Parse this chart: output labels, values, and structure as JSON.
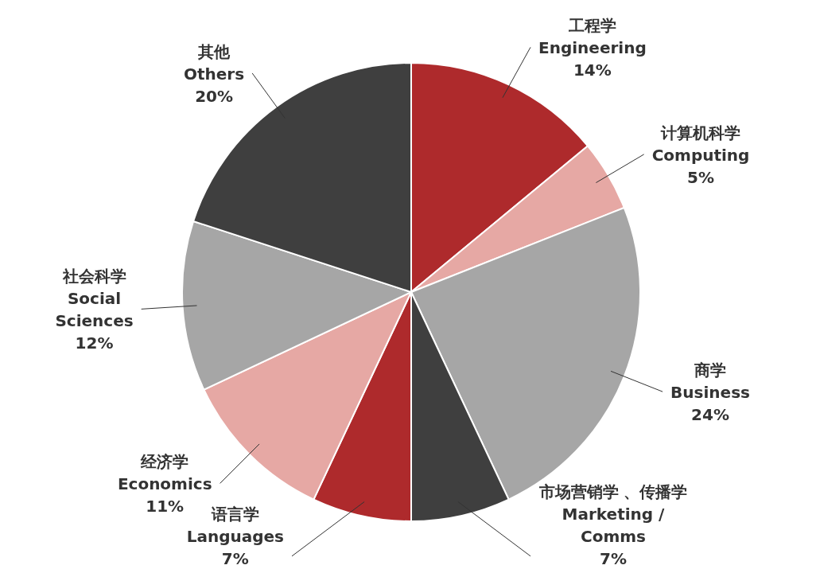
{
  "chart_data": {
    "type": "pie",
    "categories": [
      "工程学\nEngineering",
      "计算机科学\nComputing",
      "商学\nBusiness",
      "市场营销学 、传播学\nMarketing /\nComms",
      "语言学\nLanguages",
      "经济学\nEconomics",
      "社会科学\nSocial\nSciences",
      "其他\nOthers"
    ],
    "values": [
      14,
      5,
      24,
      7,
      7,
      11,
      12,
      20
    ],
    "colors": [
      "#ae2a2c",
      "#e6a8a4",
      "#a6a6a6",
      "#3f3f3f",
      "#ae2a2c",
      "#e6a8a4",
      "#a6a6a6",
      "#3f3f3f"
    ],
    "value_labels": [
      "14%",
      "5%",
      "24%",
      "7%",
      "7%",
      "11%",
      "12%",
      "20%"
    ]
  }
}
